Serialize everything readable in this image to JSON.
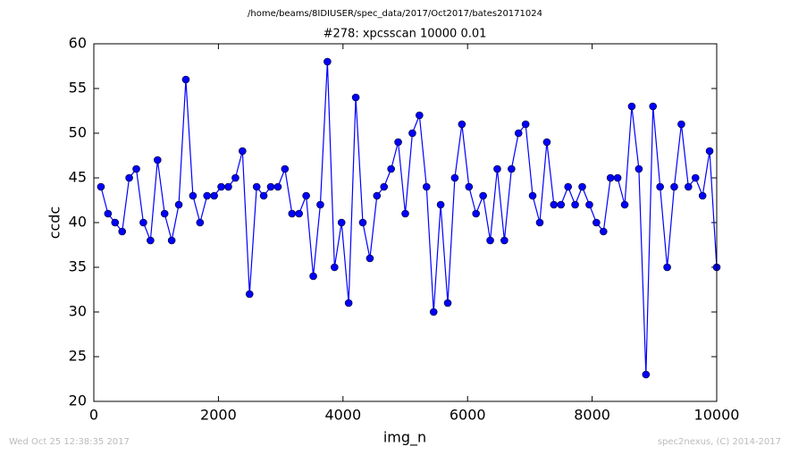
{
  "chart_data": {
    "type": "line",
    "suptitle": "/home/beams/8IDIUSER/spec_data/2017/Oct2017/bates20171024",
    "title": "#278: xpcsscan 10000 0.01",
    "xlabel": "img_n",
    "ylabel": "ccdc",
    "color": "#0000ff",
    "marker": "o",
    "x": [
      114,
      227,
      341,
      455,
      568,
      682,
      795,
      909,
      1023,
      1136,
      1250,
      1364,
      1477,
      1591,
      1705,
      1818,
      1932,
      2045,
      2159,
      2273,
      2386,
      2500,
      2614,
      2727,
      2841,
      2955,
      3068,
      3182,
      3295,
      3409,
      3523,
      3636,
      3750,
      3864,
      3977,
      4091,
      4205,
      4318,
      4432,
      4545,
      4659,
      4773,
      4886,
      5000,
      5114,
      5227,
      5341,
      5455,
      5568,
      5682,
      5795,
      5909,
      6023,
      6136,
      6250,
      6364,
      6477,
      6591,
      6705,
      6818,
      6932,
      7045,
      7159,
      7273,
      7386,
      7500,
      7614,
      7727,
      7841,
      7955,
      8068,
      8182,
      8295,
      8409,
      8523,
      8636,
      8750,
      8864,
      8977,
      9091,
      9205,
      9318,
      9432,
      9545,
      9659,
      9773,
      9886,
      10000
    ],
    "values": [
      44,
      41,
      40,
      39,
      45,
      46,
      40,
      38,
      47,
      41,
      38,
      42,
      56,
      43,
      40,
      43,
      43,
      44,
      44,
      45,
      48,
      32,
      44,
      43,
      44,
      44,
      46,
      41,
      41,
      43,
      34,
      42,
      58,
      35,
      40,
      31,
      54,
      40,
      36,
      43,
      44,
      46,
      49,
      41,
      50,
      52,
      44,
      30,
      42,
      31,
      45,
      51,
      44,
      41,
      43,
      38,
      46,
      38,
      46,
      50,
      51,
      43,
      40,
      49,
      42,
      42,
      44,
      42,
      44,
      42,
      40,
      39,
      45,
      45,
      42,
      53,
      46,
      23,
      53,
      44,
      35,
      44,
      51,
      44,
      45,
      43,
      48,
      35
    ],
    "xlim": [
      0,
      10000
    ],
    "xticks": [
      0,
      2000,
      4000,
      6000,
      8000,
      10000
    ],
    "ylim": [
      20,
      60
    ],
    "yticks": [
      20,
      25,
      30,
      35,
      40,
      45,
      50,
      55,
      60
    ],
    "grid": false
  },
  "footer": {
    "left": "Wed Oct 25 12:38:35 2017",
    "right": "spec2nexus, (C) 2014-2017"
  }
}
